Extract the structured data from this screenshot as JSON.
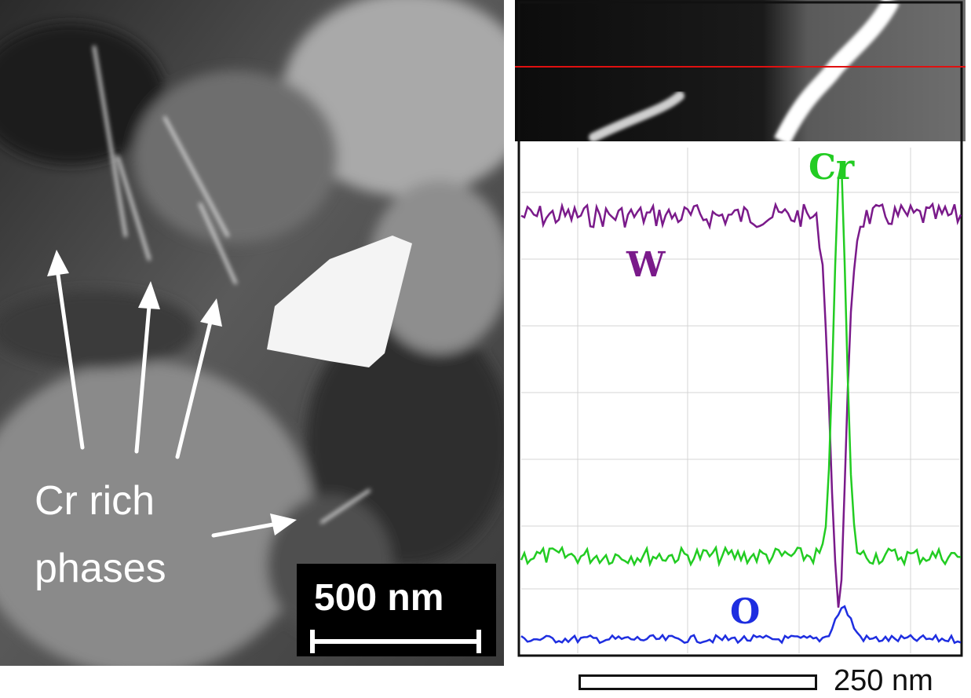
{
  "tem_image": {
    "annotation": {
      "line1": "Cr rich",
      "line2": "phases"
    },
    "scale_bar": {
      "label": "500 nm"
    }
  },
  "stem_profile": {
    "elements": [
      {
        "symbol": "Cr",
        "color": "#22cc22"
      },
      {
        "symbol": "W",
        "color": "#7a1a8a"
      },
      {
        "symbol": "O",
        "color": "#1e2ee0"
      }
    ],
    "scan_line_color": "#e01010",
    "scale_bar": {
      "label": "250 nm"
    }
  }
}
